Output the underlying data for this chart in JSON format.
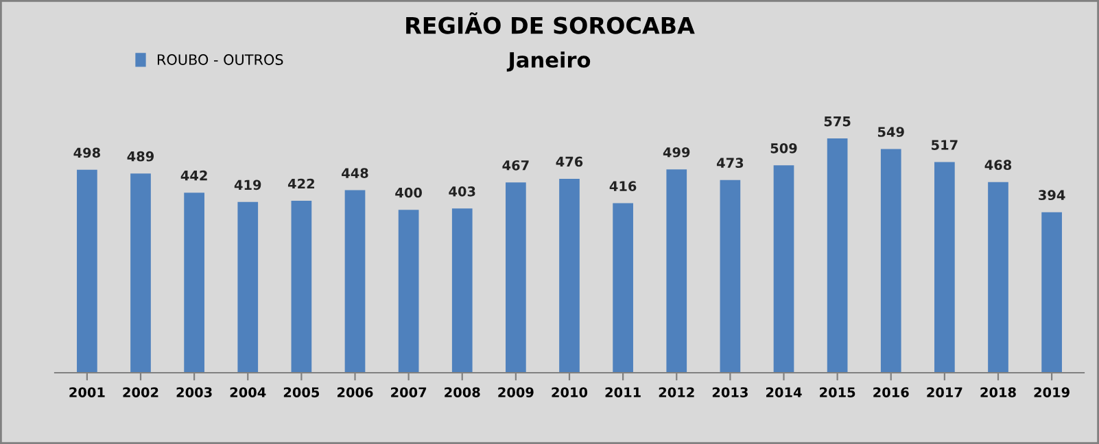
{
  "chart_data": {
    "type": "bar",
    "title": "REGIÃO DE SOROCABA",
    "subtitle": "Janeiro",
    "categories": [
      "2001",
      "2002",
      "2003",
      "2004",
      "2005",
      "2006",
      "2007",
      "2008",
      "2009",
      "2010",
      "2011",
      "2012",
      "2013",
      "2014",
      "2015",
      "2016",
      "2017",
      "2018",
      "2019"
    ],
    "series": [
      {
        "name": "ROUBO - OUTROS",
        "color": "#4f81bd",
        "values": [
          498,
          489,
          442,
          419,
          422,
          448,
          400,
          403,
          467,
          476,
          416,
          499,
          473,
          509,
          575,
          549,
          517,
          468,
          394
        ]
      }
    ],
    "data_labels": true,
    "grid": false,
    "legend": "top left"
  }
}
